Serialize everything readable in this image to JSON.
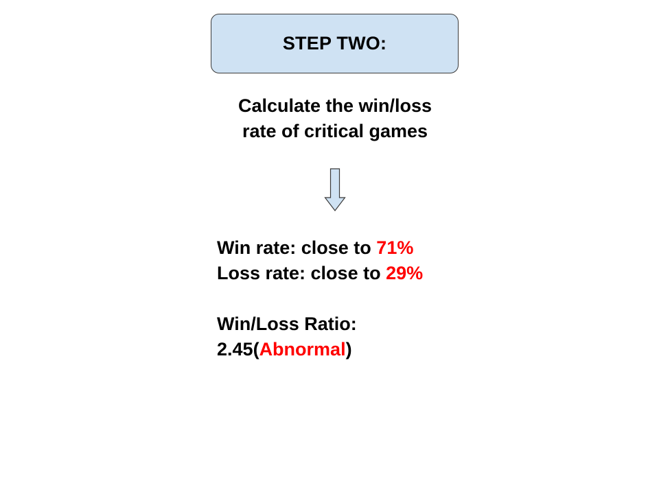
{
  "step": {
    "title": "STEP TWO:"
  },
  "instruction": {
    "line1": "Calculate the win/loss",
    "line2": "rate of critical games"
  },
  "arrow": {
    "icon": "down-arrow-icon",
    "fill": "#cfe2f3",
    "stroke": "#3a3a3a"
  },
  "results": {
    "win_rate": {
      "prefix": "Win rate: close to ",
      "value": "71%"
    },
    "loss_rate": {
      "prefix": "Loss rate: close to ",
      "value": "29%"
    },
    "ratio_label": "Win/Loss Ratio:",
    "ratio": {
      "value": "2.45",
      "open_paren": "(",
      "status": "Abnormal",
      "close_paren": ")"
    }
  },
  "colors": {
    "box_fill": "#cfe2f3",
    "highlight": "#ff0000",
    "text": "#000000"
  }
}
